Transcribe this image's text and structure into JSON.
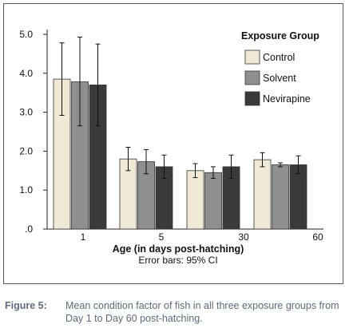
{
  "chart_data": {
    "type": "bar",
    "title": "",
    "xlabel": "Age (in days post-hatching)",
    "xlabel_note": "Error bars: 95% CI",
    "ylabel": "",
    "ylim": [
      0,
      5.0
    ],
    "yticks": [
      ".0",
      "1.0",
      "2.0",
      "3.0",
      "4.0",
      "5.0"
    ],
    "categories": [
      "1",
      "5",
      "30",
      "60"
    ],
    "legend": {
      "title": "Exposure Group",
      "placement": "top-right"
    },
    "series": [
      {
        "name": "Control",
        "color": "#efe9d6",
        "values": [
          3.85,
          1.8,
          1.5,
          1.78
        ],
        "ci_low": [
          2.92,
          1.5,
          1.32,
          1.6
        ],
        "ci_high": [
          4.78,
          2.1,
          1.68,
          1.96
        ]
      },
      {
        "name": "Solvent",
        "color": "#8f8f8f",
        "values": [
          3.78,
          1.73,
          1.45,
          1.65
        ],
        "ci_low": [
          2.65,
          1.42,
          1.3,
          1.6
        ],
        "ci_high": [
          4.93,
          2.04,
          1.6,
          1.7
        ]
      },
      {
        "name": "Nevirapine",
        "color": "#3a3a3a",
        "values": [
          3.7,
          1.6,
          1.6,
          1.65
        ],
        "ci_low": [
          2.65,
          1.3,
          1.3,
          1.42
        ],
        "ci_high": [
          4.75,
          1.9,
          1.9,
          1.88
        ]
      }
    ],
    "grid": false
  },
  "caption": {
    "label": "Figure 5:",
    "text": "Mean condition factor of fish in all three exposure groups from Day 1 to Day 60 post-hatching."
  }
}
